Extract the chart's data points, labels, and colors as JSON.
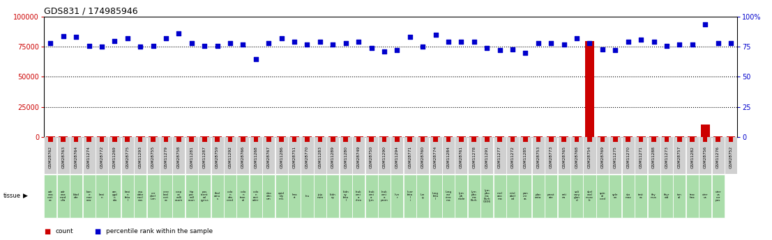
{
  "title": "GDS831 / 174985946",
  "samples": [
    "GSM28762",
    "GSM28763",
    "GSM28764",
    "GSM11274",
    "GSM28772",
    "GSM11269",
    "GSM28775",
    "GSM11293",
    "GSM28755",
    "GSM11279",
    "GSM28758",
    "GSM11281",
    "GSM11287",
    "GSM28759",
    "GSM11292",
    "GSM28766",
    "GSM11268",
    "GSM28767",
    "GSM11286",
    "GSM28751",
    "GSM28770",
    "GSM11283",
    "GSM11289",
    "GSM11280",
    "GSM28749",
    "GSM28750",
    "GSM11290",
    "GSM11294",
    "GSM28771",
    "GSM28760",
    "GSM28774",
    "GSM11284",
    "GSM28761",
    "GSM11278",
    "GSM11291",
    "GSM11277",
    "GSM11272",
    "GSM11285",
    "GSM28753",
    "GSM28773",
    "GSM28765",
    "GSM28768",
    "GSM28754",
    "GSM28769",
    "GSM11275",
    "GSM11270",
    "GSM11271",
    "GSM11288",
    "GSM11273",
    "GSM28757",
    "GSM11282",
    "GSM28756",
    "GSM11276",
    "GSM28752"
  ],
  "tissue_labels": [
    "adr\nena\ncort\nex",
    "adr\nena\nmed\nulla",
    "blad\nder",
    "bon\ne\nmar\nrow",
    "brai\nn",
    "am\nygd\nn\nala",
    "brai\nn\nfeta\nl",
    "cau\ndate\nnucl\neus",
    "cer\nebel\nlum",
    "cere\nbral\ncort\nex",
    "corp\nus\ncalli\nosum",
    "hip\npoc\ncall\nosun",
    "pos\ntcent\nral\ngyrus",
    "thal\namu\ns",
    "colo\nn\ndes\ncend",
    "colo\nn\ntran\nal",
    "colo\nn\nrect\nader",
    "duo\nden\num",
    "epid\nidy\nmis",
    "hea\nrt",
    "leu",
    "jeju\nnum",
    "kidn\ney",
    "kidn\ney\nfeta\nl",
    "leuk\nemi\na\nchro",
    "leuk\nemi\na\nlym",
    "leuk\nemi\na\nprom",
    "live\nr",
    "liver\nfeta\nl\ni",
    "lun\ng",
    "lung\nfeta\nl",
    "lung\ncar\ncino\nma",
    "lym\nph\nnode",
    "lym\npho\nma\nBurk",
    "lym\npho\nma\nBurk\nG336",
    "mel\nano\nma",
    "misl\nabel\ned",
    "pan\ncre\nas",
    "plac\nenta",
    "prost\nate",
    "reti\nna",
    "sali\nvary\nglan\nd",
    "skel\netal\nmusc\nle",
    "spin\nal\ncord",
    "sple\nen",
    "sto\nmac",
    "test\nes",
    "thy\nmus",
    "thyr\noid",
    "ton\nsil",
    "trac\nhea",
    "uter\nus",
    "uter\nus\ncor\npus"
  ],
  "counts": [
    200,
    200,
    200,
    500,
    200,
    200,
    200,
    200,
    500,
    200,
    200,
    200,
    200,
    200,
    200,
    200,
    200,
    200,
    200,
    200,
    200,
    200,
    200,
    200,
    200,
    200,
    500,
    500,
    200,
    200,
    200,
    200,
    200,
    200,
    200,
    200,
    200,
    200,
    200,
    200,
    200,
    200,
    80000,
    200,
    200,
    200,
    200,
    200,
    200,
    200,
    200,
    10000,
    200,
    200
  ],
  "percentiles": [
    78000,
    84000,
    83000,
    76000,
    75000,
    80000,
    82000,
    75000,
    76000,
    82000,
    86000,
    78000,
    76000,
    76000,
    78000,
    77000,
    65000,
    78000,
    82000,
    79000,
    77000,
    79000,
    77000,
    78000,
    79000,
    74000,
    71000,
    72000,
    83000,
    75000,
    85000,
    79000,
    79000,
    79000,
    74000,
    72000,
    73000,
    70000,
    78000,
    78000,
    77000,
    82000,
    78000,
    73000,
    72000,
    79000,
    81000,
    79000,
    76000,
    77000,
    77000,
    94000,
    78000,
    78000
  ],
  "ylim_left": [
    0,
    100000
  ],
  "yticks_left": [
    0,
    25000,
    50000,
    75000,
    100000
  ],
  "yticks_right": [
    0,
    25,
    50,
    75,
    100
  ],
  "count_color": "#cc0000",
  "percentile_color": "#0000cc",
  "sample_box_color": "#d0d0d0",
  "tissue_box_color": "#aaddaa"
}
